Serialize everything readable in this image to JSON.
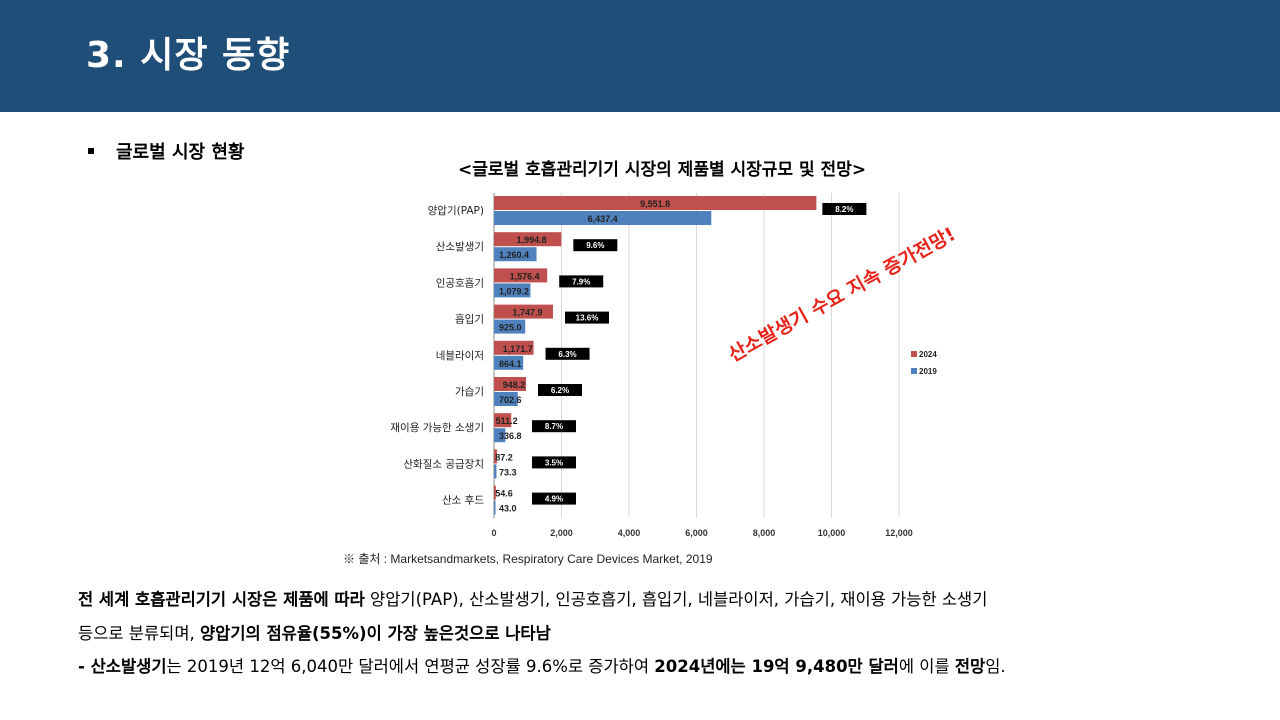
{
  "header": {
    "title": "3. 시장 동향"
  },
  "section": {
    "bullet": "글로벌 시장 현황"
  },
  "chart_data": {
    "type": "bar",
    "orientation": "horizontal",
    "title": "<글로벌 호흡관리기기 시장의 제품별 시장규모 및 전망>",
    "categories": [
      "양압기(PAP)",
      "산소발생기",
      "인공호흡기",
      "흡입기",
      "네블라이저",
      "가습기",
      "재이용 가능한 소생기",
      "산화질소 공급장치",
      "산소 후드"
    ],
    "series": [
      {
        "name": "2024",
        "color": "#c0504d",
        "values": [
          9551.8,
          1994.8,
          1576.4,
          1747.9,
          1171.7,
          948.2,
          511.2,
          87.2,
          54.6
        ],
        "labels": [
          "9,551.8",
          "1,994.8",
          "1,576.4",
          "1,747.9",
          "1,171.7",
          "948.2",
          "511.2",
          "87.2",
          "54.6"
        ]
      },
      {
        "name": "2019",
        "color": "#4f81bd",
        "values": [
          6437.4,
          1260.4,
          1079.2,
          925.0,
          864.1,
          702.6,
          336.8,
          73.3,
          43.0
        ],
        "labels": [
          "6,437.4",
          "1,260.4",
          "1,079.2",
          "925.0",
          "864.1",
          "702.6",
          "336.8",
          "73.3",
          "43.0"
        ]
      }
    ],
    "growth_rates": [
      "8.2%",
      "9.6%",
      "7.9%",
      "13.6%",
      "6.3%",
      "6.2%",
      "8.7%",
      "3.5%",
      "4.9%"
    ],
    "xlim": [
      0,
      12000
    ],
    "xticks": [
      0,
      2000,
      4000,
      6000,
      8000,
      10000,
      12000
    ],
    "xtick_labels": [
      "0",
      "2,000",
      "4,000",
      "6,000",
      "8,000",
      "10,000",
      "12,000"
    ],
    "legend": [
      "2024",
      "2019"
    ],
    "legend_position": "right",
    "grid": true,
    "annotation": "산소발생기 수요 지속 증가전망!"
  },
  "source": "※ 출처 : Marketsandmarkets, Respiratory Care Devices Market, 2019",
  "paragraph": {
    "line1_bold": "전 세계 호흡관리기기 시장은 제품에 따라",
    "line1_normal": " 양압기(PAP), 산소발생기, 인공호흡기, 흡입기, 네블라이저, 가습기, 재이용 가능한 소생기",
    "line2_normal": "등으로 분류되며, ",
    "line2_bold": "양압기의 점유율(55%)이 가장 높은것으로 나타남",
    "line3_a": "- ",
    "line3_b": "산소발생기",
    "line3_c": "는 2019년 12억 6,040만 달러에서 연평균 성장률 9.6%로 증가하여 ",
    "line3_d": "2024년에는 19억 9,480만 달러",
    "line3_e": "에 이를 ",
    "line3_f": "전망",
    "line3_g": "임."
  }
}
